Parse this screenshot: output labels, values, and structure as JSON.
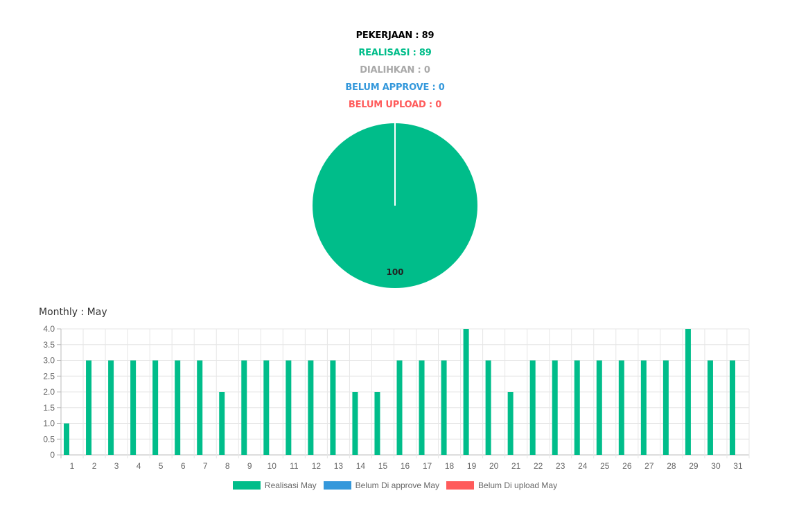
{
  "summary": {
    "pekerjaan": "PEKERJAAN : 89",
    "realisasi": "REALISASI : 89",
    "dialihkan": "DIALIHKAN : 0",
    "belum_approve": "BELUM APPROVE : 0",
    "belum_upload": "BELUM UPLOAD : 0"
  },
  "colors": {
    "realisasi": "#00bd8a",
    "dialihkan": "#a9a9a9",
    "belum_approve": "#3498db",
    "belum_upload": "#ff5b5b",
    "pekerjaan": "#000000"
  },
  "monthly_title": "Monthly : May",
  "chart_data": [
    {
      "type": "pie",
      "slices": [
        {
          "name": "Realisasi",
          "value": 100,
          "color": "#00bd8a"
        }
      ],
      "data_labels": [
        "100"
      ]
    },
    {
      "type": "bar",
      "categories": [
        "1",
        "2",
        "3",
        "4",
        "5",
        "6",
        "7",
        "8",
        "9",
        "10",
        "11",
        "12",
        "13",
        "14",
        "15",
        "16",
        "17",
        "18",
        "19",
        "20",
        "21",
        "22",
        "23",
        "24",
        "25",
        "26",
        "27",
        "28",
        "29",
        "30",
        "31"
      ],
      "series": [
        {
          "name": "Realisasi May",
          "color": "#00bd8a",
          "values": [
            1,
            3,
            3,
            3,
            3,
            3,
            3,
            2,
            3,
            3,
            3,
            3,
            3,
            2,
            2,
            3,
            3,
            3,
            4,
            3,
            2,
            3,
            3,
            3,
            3,
            3,
            3,
            3,
            4,
            3,
            3
          ]
        },
        {
          "name": "Belum Di approve May",
          "color": "#3498db",
          "values": [
            0,
            0,
            0,
            0,
            0,
            0,
            0,
            0,
            0,
            0,
            0,
            0,
            0,
            0,
            0,
            0,
            0,
            0,
            0,
            0,
            0,
            0,
            0,
            0,
            0,
            0,
            0,
            0,
            0,
            0,
            0
          ]
        },
        {
          "name": "Belum Di upload May",
          "color": "#ff5b5b",
          "values": [
            0,
            0,
            0,
            0,
            0,
            0,
            0,
            0,
            0,
            0,
            0,
            0,
            0,
            0,
            0,
            0,
            0,
            0,
            0,
            0,
            0,
            0,
            0,
            0,
            0,
            0,
            0,
            0,
            0,
            0,
            0
          ]
        }
      ],
      "ylim": [
        0,
        4
      ],
      "yticks": [
        "0",
        "0.5",
        "1.0",
        "1.5",
        "2.0",
        "2.5",
        "3.0",
        "3.5",
        "4.0"
      ],
      "grid": true,
      "legend_position": "bottom"
    }
  ]
}
